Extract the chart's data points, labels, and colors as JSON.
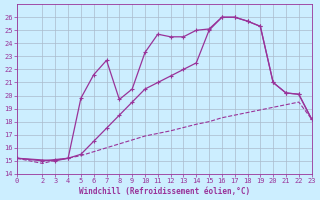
{
  "xlabel": "Windchill (Refroidissement éolien,°C)",
  "bg_color": "#cceeff",
  "grid_color": "#aabbcc",
  "line_color": "#993399",
  "xlim": [
    0,
    23
  ],
  "ylim": [
    14,
    27
  ],
  "xticks": [
    0,
    2,
    3,
    4,
    5,
    6,
    7,
    8,
    9,
    10,
    11,
    12,
    13,
    14,
    15,
    16,
    17,
    18,
    19,
    20,
    21,
    22,
    23
  ],
  "yticks": [
    14,
    15,
    16,
    17,
    18,
    19,
    20,
    21,
    22,
    23,
    24,
    25,
    26
  ],
  "curve_dashed_x": [
    0,
    2,
    3,
    4,
    5,
    6,
    7,
    8,
    9,
    10,
    11,
    12,
    13,
    14,
    15,
    16,
    17,
    18,
    19,
    20,
    21,
    22,
    23
  ],
  "curve_dashed_y": [
    15.2,
    14.8,
    15.05,
    15.2,
    15.4,
    15.7,
    16.0,
    16.3,
    16.6,
    16.9,
    17.1,
    17.3,
    17.55,
    17.8,
    18.0,
    18.3,
    18.5,
    18.7,
    18.9,
    19.1,
    19.3,
    19.5,
    18.2
  ],
  "curve_mid_x": [
    0,
    2,
    3,
    4,
    5,
    6,
    7,
    8,
    9,
    10,
    11,
    12,
    13,
    14,
    15,
    16,
    17,
    18,
    19,
    20,
    21,
    22,
    23
  ],
  "curve_mid_y": [
    15.2,
    15.0,
    15.1,
    15.2,
    15.5,
    16.5,
    17.5,
    18.5,
    19.5,
    20.5,
    21.0,
    21.5,
    22.0,
    22.5,
    25.0,
    26.0,
    26.0,
    25.7,
    25.3,
    21.0,
    20.2,
    20.1,
    18.2
  ],
  "curve_top_x": [
    0,
    3,
    4,
    5,
    6,
    7,
    8,
    9,
    10,
    11,
    12,
    13,
    14,
    15,
    16,
    17,
    18,
    19,
    20,
    21,
    22,
    23
  ],
  "curve_top_y": [
    15.2,
    15.0,
    15.2,
    19.8,
    21.6,
    22.7,
    19.7,
    20.5,
    23.3,
    24.7,
    24.5,
    24.5,
    25.0,
    25.1,
    26.0,
    26.0,
    25.7,
    25.3,
    21.0,
    20.2,
    20.1,
    18.2
  ]
}
